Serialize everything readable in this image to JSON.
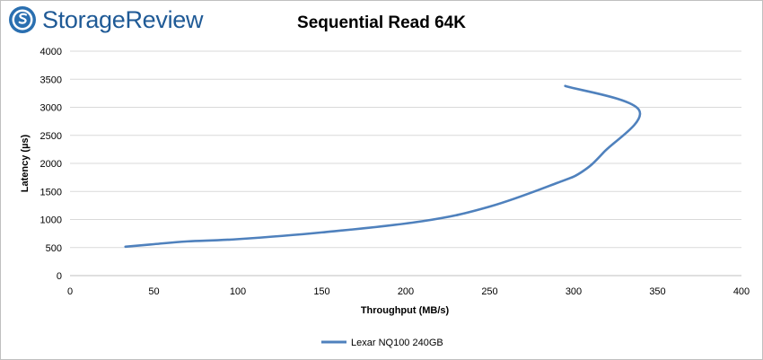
{
  "brand": {
    "name": "StorageReview"
  },
  "colors": {
    "series": "#4f81bd",
    "grid": "#d9d9d9",
    "brand": "#1f5a96"
  },
  "chart_data": {
    "type": "line",
    "title": "Sequential Read 64K",
    "xlabel": "Throughput (MB/s)",
    "ylabel": "Latency (µs)",
    "xlim": [
      0,
      400
    ],
    "ylim": [
      0,
      4000
    ],
    "xticks": [
      0,
      50,
      100,
      150,
      200,
      250,
      300,
      350,
      400
    ],
    "yticks": [
      0,
      500,
      1000,
      1500,
      2000,
      2500,
      3000,
      3500,
      4000
    ],
    "grid": true,
    "legend_position": "bottom",
    "series": [
      {
        "name": "Lexar NQ100 240GB",
        "color": "#4f81bd",
        "x": [
          33,
          50,
          70,
          100,
          150,
          210,
          250,
          290,
          305,
          318,
          339,
          295
        ],
        "y": [
          515,
          560,
          610,
          650,
          770,
          970,
          1230,
          1650,
          1850,
          2200,
          2950,
          3380
        ]
      }
    ]
  }
}
